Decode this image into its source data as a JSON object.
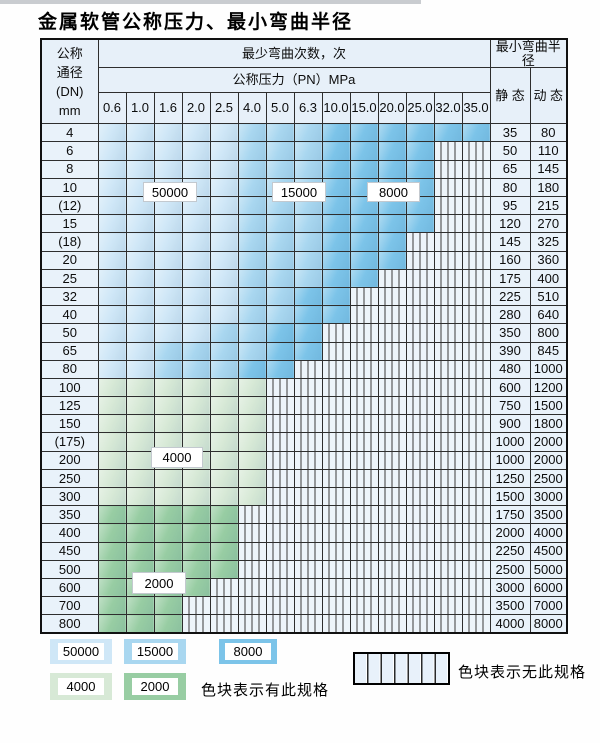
{
  "title": "金属软管公称压力、最小弯曲半径",
  "colors": {
    "blue_50000": "#cfe7f7",
    "blue_15000": "#a9d7f0",
    "blue_8000": "#7cc4e9",
    "green_4000": "#d7e9d6",
    "green_2000": "#98cda3",
    "cell_bg": "#e9f2fa",
    "header_bg": "#e7f0f9",
    "grid": "#2e2e2e"
  },
  "zones": {
    "b1": "#cfe7f7",
    "b2": "#a9d7f0",
    "b3": "#7cc4e9",
    "g1": "#d7e9d6",
    "g2": "#98cda3"
  },
  "table": {
    "header": {
      "dn_lines": [
        "公称",
        "通径",
        "(DN)",
        "mm"
      ],
      "bend_cycles": "最少弯曲次数，次",
      "pressure": "公称压力（PN）MPa",
      "radius": "最小弯曲半径",
      "static": "静 态",
      "dynamic": "动 态",
      "pressures": [
        "0.6",
        "1.0",
        "1.6",
        "2.0",
        "2.5",
        "4.0",
        "5.0",
        "6.3",
        "10.0",
        "15.0",
        "20.0",
        "25.0",
        "32.0",
        "35.0"
      ]
    },
    "rows": [
      {
        "dn": "4",
        "static": "35",
        "dynamic": "80",
        "cells": [
          "b1",
          "b1",
          "b1",
          "b1",
          "b1",
          "b2",
          "b2",
          "b2",
          "b3",
          "b3",
          "b3",
          "b3",
          "b3",
          "b3"
        ]
      },
      {
        "dn": "6",
        "static": "50",
        "dynamic": "110",
        "cells": [
          "b1",
          "b1",
          "b1",
          "b1",
          "b1",
          "b2",
          "b2",
          "b2",
          "b3",
          "b3",
          "b3",
          "b3",
          "h",
          "h"
        ]
      },
      {
        "dn": "8",
        "static": "65",
        "dynamic": "145",
        "cells": [
          "b1",
          "b1",
          "b1",
          "b1",
          "b1",
          "b2",
          "b2",
          "b2",
          "b3",
          "b3",
          "b3",
          "b3",
          "h",
          "h"
        ]
      },
      {
        "dn": "10",
        "static": "80",
        "dynamic": "180",
        "cells": [
          "b1",
          "b1",
          "b1",
          "b1",
          "b1",
          "b2",
          "b2",
          "b2",
          "b3",
          "b3",
          "b3",
          "b3",
          "h",
          "h"
        ]
      },
      {
        "dn": "(12)",
        "static": "95",
        "dynamic": "215",
        "cells": [
          "b1",
          "b1",
          "b1",
          "b1",
          "b1",
          "b2",
          "b2",
          "b2",
          "b3",
          "b3",
          "b3",
          "b3",
          "h",
          "h"
        ]
      },
      {
        "dn": "15",
        "static": "120",
        "dynamic": "270",
        "cells": [
          "b1",
          "b1",
          "b1",
          "b1",
          "b1",
          "b2",
          "b2",
          "b2",
          "b3",
          "b3",
          "b3",
          "b3",
          "h",
          "h"
        ]
      },
      {
        "dn": "(18)",
        "static": "145",
        "dynamic": "325",
        "cells": [
          "b1",
          "b1",
          "b1",
          "b1",
          "b1",
          "b2",
          "b2",
          "b2",
          "b3",
          "b3",
          "b3",
          "h",
          "h",
          "h"
        ]
      },
      {
        "dn": "20",
        "static": "160",
        "dynamic": "360",
        "cells": [
          "b1",
          "b1",
          "b1",
          "b1",
          "b1",
          "b2",
          "b2",
          "b2",
          "b3",
          "b3",
          "b3",
          "h",
          "h",
          "h"
        ]
      },
      {
        "dn": "25",
        "static": "175",
        "dynamic": "400",
        "cells": [
          "b1",
          "b1",
          "b1",
          "b1",
          "b1",
          "b2",
          "b2",
          "b2",
          "b3",
          "b3",
          "h",
          "h",
          "h",
          "h"
        ]
      },
      {
        "dn": "32",
        "static": "225",
        "dynamic": "510",
        "cells": [
          "b1",
          "b1",
          "b1",
          "b1",
          "b1",
          "b2",
          "b2",
          "b3",
          "b3",
          "h",
          "h",
          "h",
          "h",
          "h"
        ]
      },
      {
        "dn": "40",
        "static": "280",
        "dynamic": "640",
        "cells": [
          "b1",
          "b1",
          "b1",
          "b1",
          "b1",
          "b2",
          "b2",
          "b3",
          "b3",
          "h",
          "h",
          "h",
          "h",
          "h"
        ]
      },
      {
        "dn": "50",
        "static": "350",
        "dynamic": "800",
        "cells": [
          "b1",
          "b1",
          "b1",
          "b1",
          "b2",
          "b2",
          "b3",
          "b3",
          "h",
          "h",
          "h",
          "h",
          "h",
          "h"
        ]
      },
      {
        "dn": "65",
        "static": "390",
        "dynamic": "845",
        "cells": [
          "b1",
          "b1",
          "b2",
          "b2",
          "b2",
          "b2",
          "b3",
          "b3",
          "h",
          "h",
          "h",
          "h",
          "h",
          "h"
        ]
      },
      {
        "dn": "80",
        "static": "480",
        "dynamic": "1000",
        "cells": [
          "b1",
          "b1",
          "b2",
          "b2",
          "b2",
          "b3",
          "b3",
          "h",
          "h",
          "h",
          "h",
          "h",
          "h",
          "h"
        ]
      },
      {
        "dn": "100",
        "static": "600",
        "dynamic": "1200",
        "cells": [
          "g1",
          "g1",
          "g1",
          "g1",
          "g1",
          "g1",
          "h",
          "h",
          "h",
          "h",
          "h",
          "h",
          "h",
          "h"
        ]
      },
      {
        "dn": "125",
        "static": "750",
        "dynamic": "1500",
        "cells": [
          "g1",
          "g1",
          "g1",
          "g1",
          "g1",
          "g1",
          "h",
          "h",
          "h",
          "h",
          "h",
          "h",
          "h",
          "h"
        ]
      },
      {
        "dn": "150",
        "static": "900",
        "dynamic": "1800",
        "cells": [
          "g1",
          "g1",
          "g1",
          "g1",
          "g1",
          "g1",
          "h",
          "h",
          "h",
          "h",
          "h",
          "h",
          "h",
          "h"
        ]
      },
      {
        "dn": "(175)",
        "static": "1000",
        "dynamic": "2000",
        "cells": [
          "g1",
          "g1",
          "g1",
          "g1",
          "g1",
          "g1",
          "h",
          "h",
          "h",
          "h",
          "h",
          "h",
          "h",
          "h"
        ]
      },
      {
        "dn": "200",
        "static": "1000",
        "dynamic": "2000",
        "cells": [
          "g1",
          "g1",
          "g1",
          "g1",
          "g1",
          "g1",
          "h",
          "h",
          "h",
          "h",
          "h",
          "h",
          "h",
          "h"
        ]
      },
      {
        "dn": "250",
        "static": "1250",
        "dynamic": "2500",
        "cells": [
          "g1",
          "g1",
          "g1",
          "g1",
          "g1",
          "g1",
          "h",
          "h",
          "h",
          "h",
          "h",
          "h",
          "h",
          "h"
        ]
      },
      {
        "dn": "300",
        "static": "1500",
        "dynamic": "3000",
        "cells": [
          "g1",
          "g1",
          "g1",
          "g1",
          "g1",
          "g1",
          "h",
          "h",
          "h",
          "h",
          "h",
          "h",
          "h",
          "h"
        ]
      },
      {
        "dn": "350",
        "static": "1750",
        "dynamic": "3500",
        "cells": [
          "g2",
          "g2",
          "g2",
          "g2",
          "g2",
          "h",
          "h",
          "h",
          "h",
          "h",
          "h",
          "h",
          "h",
          "h"
        ]
      },
      {
        "dn": "400",
        "static": "2000",
        "dynamic": "4000",
        "cells": [
          "g2",
          "g2",
          "g2",
          "g2",
          "g2",
          "h",
          "h",
          "h",
          "h",
          "h",
          "h",
          "h",
          "h",
          "h"
        ]
      },
      {
        "dn": "450",
        "static": "2250",
        "dynamic": "4500",
        "cells": [
          "g2",
          "g2",
          "g2",
          "g2",
          "g2",
          "h",
          "h",
          "h",
          "h",
          "h",
          "h",
          "h",
          "h",
          "h"
        ]
      },
      {
        "dn": "500",
        "static": "2500",
        "dynamic": "5000",
        "cells": [
          "g2",
          "g2",
          "g2",
          "g2",
          "g2",
          "h",
          "h",
          "h",
          "h",
          "h",
          "h",
          "h",
          "h",
          "h"
        ]
      },
      {
        "dn": "600",
        "static": "3000",
        "dynamic": "6000",
        "cells": [
          "g2",
          "g2",
          "g2",
          "g2",
          "h",
          "h",
          "h",
          "h",
          "h",
          "h",
          "h",
          "h",
          "h",
          "h"
        ]
      },
      {
        "dn": "700",
        "static": "3500",
        "dynamic": "7000",
        "cells": [
          "g2",
          "g2",
          "g2",
          "h",
          "h",
          "h",
          "h",
          "h",
          "h",
          "h",
          "h",
          "h",
          "h",
          "h"
        ]
      },
      {
        "dn": "800",
        "static": "4000",
        "dynamic": "8000",
        "cells": [
          "g2",
          "g2",
          "g2",
          "h",
          "h",
          "h",
          "h",
          "h",
          "h",
          "h",
          "h",
          "h",
          "h",
          "h"
        ]
      }
    ]
  },
  "overlays": [
    {
      "text": "50000"
    },
    {
      "text": "15000"
    },
    {
      "text": "8000"
    },
    {
      "text": "4000"
    },
    {
      "text": "2000"
    }
  ],
  "legend": {
    "chips": [
      {
        "label": "50000",
        "zone": "b1"
      },
      {
        "label": "15000",
        "zone": "b2"
      },
      {
        "label": "8000",
        "zone": "b3"
      },
      {
        "label": "4000",
        "zone": "g1"
      },
      {
        "label": "2000",
        "zone": "g2"
      }
    ],
    "has_spec": "色块表示有此规格",
    "no_spec": "色块表示无此规格"
  }
}
